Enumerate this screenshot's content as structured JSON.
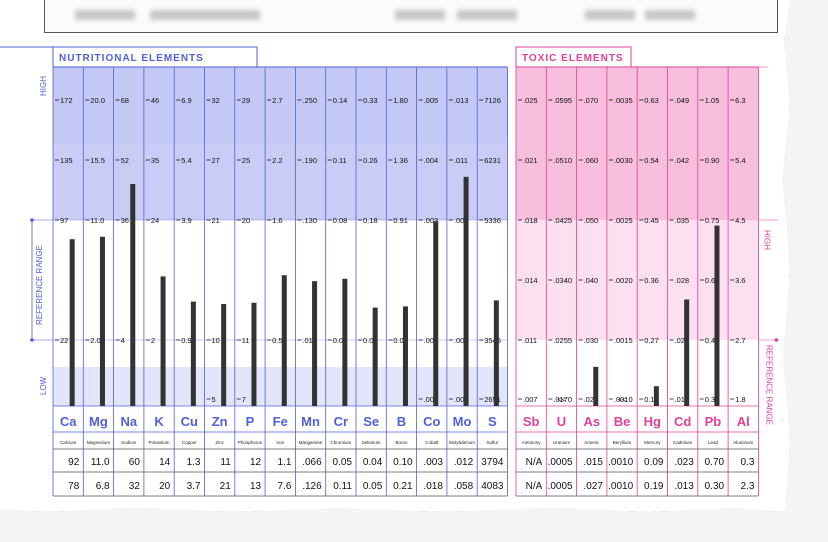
{
  "nutritional": {
    "title": "NUTRITIONAL ELEMENTS",
    "side_labels": {
      "high": "HIGH",
      "low": "LOW",
      "reference": "REFERENCE RANGE"
    },
    "color": "#5060d8",
    "elements": [
      {
        "symbol": "Ca",
        "name": "Calcium",
        "ticks": [
          "172",
          "135",
          "97",
          "22",
          "",
          ""
        ],
        "level": 0.84,
        "result": "92",
        "reference": "78"
      },
      {
        "symbol": "Mg",
        "name": "Magnesium",
        "ticks": [
          "20.0",
          "15.5",
          "11.0",
          "2.0",
          "",
          ""
        ],
        "level": 0.86,
        "result": "11.0",
        "reference": "6.8"
      },
      {
        "symbol": "Na",
        "name": "Sodium",
        "ticks": [
          "68",
          "52",
          "36",
          "4",
          "",
          ""
        ],
        "level": 1.3,
        "result": "60",
        "reference": "32"
      },
      {
        "symbol": "K",
        "name": "Potassium",
        "ticks": [
          "46",
          "35",
          "24",
          "2",
          "",
          ""
        ],
        "level": 0.53,
        "result": "14",
        "reference": "20"
      },
      {
        "symbol": "Cu",
        "name": "Copper",
        "ticks": [
          "6.9",
          "5.4",
          "3.9",
          "0.9",
          "",
          ""
        ],
        "level": 0.32,
        "result": "1.3",
        "reference": "3.7"
      },
      {
        "symbol": "Zn",
        "name": "Zinc",
        "ticks": [
          "32",
          "27",
          "21",
          "10",
          "5",
          ""
        ],
        "level": 0.3,
        "result": "11",
        "reference": "21"
      },
      {
        "symbol": "P",
        "name": "Phosphorus",
        "ticks": [
          "29",
          "25",
          "20",
          "11",
          "7",
          ""
        ],
        "level": 0.31,
        "result": "12",
        "reference": "13"
      },
      {
        "symbol": "Fe",
        "name": "Iron",
        "ticks": [
          "2.7",
          "2.2",
          "1.6",
          "0.5",
          "",
          ""
        ],
        "level": 0.54,
        "result": "1.1",
        "reference": "7.6"
      },
      {
        "symbol": "Mn",
        "name": "Manganese",
        "ticks": [
          ".250",
          ".190",
          ".130",
          ".010",
          "",
          ""
        ],
        "level": 0.49,
        "result": ".066",
        "reference": ".126"
      },
      {
        "symbol": "Cr",
        "name": "Chromium",
        "ticks": [
          "0.14",
          "0.11",
          "0.08",
          "0.02",
          "",
          ""
        ],
        "level": 0.51,
        "result": "0.05",
        "reference": "0.11"
      },
      {
        "symbol": "Se",
        "name": "Selenium",
        "ticks": [
          "0.33",
          "0.26",
          "0.18",
          "0.03",
          "",
          ""
        ],
        "level": 0.27,
        "result": "0.04",
        "reference": "0.05"
      },
      {
        "symbol": "B",
        "name": "Boron",
        "ticks": [
          "1.80",
          "1.36",
          "0.91",
          "0.02",
          "",
          ""
        ],
        "level": 0.28,
        "result": "0.10",
        "reference": "0.21"
      },
      {
        "symbol": "Co",
        "name": "Cobalt",
        "ticks": [
          ".005",
          ".004",
          ".003",
          ".001",
          ".000",
          ""
        ],
        "level": 0.99,
        "result": ".003",
        "reference": ".018"
      },
      {
        "symbol": "Mo",
        "name": "Molybdenum",
        "ticks": [
          ".013",
          ".011",
          ".008",
          ".003",
          ".001",
          ""
        ],
        "level": 1.36,
        "result": ".012",
        "reference": ".058"
      },
      {
        "symbol": "S",
        "name": "Sulfur",
        "ticks": [
          "7126",
          "6231",
          "5336",
          "3546",
          "2651",
          ""
        ],
        "level": 0.33,
        "result": "3794",
        "reference": "4083"
      }
    ]
  },
  "toxic": {
    "title": "TOXIC ELEMENTS",
    "side_labels": {
      "high": "HIGH",
      "reference": "REFERENCE RANGE"
    },
    "color": "#e0409a",
    "elements": [
      {
        "symbol": "Sb",
        "name": "Antimony",
        "ticks": [
          ".025",
          ".021",
          ".018",
          ".014",
          ".011",
          ".007"
        ],
        "level": 0,
        "marker": "",
        "result": "N/A",
        "reference": "N/A"
      },
      {
        "symbol": "U",
        "name": "Uranium",
        "ticks": [
          ".0595",
          ".0510",
          ".0425",
          ".0340",
          ".0255",
          ".0170"
        ],
        "level": 0,
        "marker": "<<",
        "result": ".0005",
        "reference": ".0005"
      },
      {
        "symbol": "As",
        "name": "Arsenic",
        "ticks": [
          ".070",
          ".060",
          ".050",
          ".040",
          ".030",
          ".020"
        ],
        "level": 0.89,
        "marker": "",
        "result": ".015",
        "reference": ".027"
      },
      {
        "symbol": "Be",
        "name": "Beryllium",
        "ticks": [
          ".0035",
          ".0030",
          ".0025",
          ".0020",
          ".0015",
          ".0010"
        ],
        "level": 0,
        "marker": "<<",
        "result": ".0010",
        "reference": ".0010"
      },
      {
        "symbol": "Hg",
        "name": "Mercury",
        "ticks": [
          "0.63",
          "0.54",
          "0.45",
          "0.36",
          "0.27",
          "0.18"
        ],
        "level": 0.45,
        "marker": "",
        "result": "0.09",
        "reference": "0.19"
      },
      {
        "symbol": "Cd",
        "name": "Cadmium",
        "ticks": [
          ".049",
          ".042",
          ".035",
          ".028",
          ".021",
          ".014"
        ],
        "level": 2.42,
        "marker": "",
        "result": ".023",
        "reference": ".013"
      },
      {
        "symbol": "Pb",
        "name": "Lead",
        "ticks": [
          "1.05",
          "0.90",
          "0.75",
          "0.60",
          "0.45",
          "0.30"
        ],
        "level": 4.1,
        "marker": "",
        "result": "0.70",
        "reference": "0.30"
      },
      {
        "symbol": "Al",
        "name": "Aluminum",
        "ticks": [
          "6.3",
          "5.4",
          "4.5",
          "3.6",
          "2.7",
          "1.8"
        ],
        "level": 0,
        "marker": "",
        "result": "0.3",
        "reference": "2.3"
      }
    ]
  },
  "colors": {
    "nutri_band": "#c9cdf6",
    "nutri_band_light": "#e3e5fb",
    "toxic_band": "#f8bedd",
    "toxic_band_light": "#fce0ef",
    "bar": "#333333"
  }
}
